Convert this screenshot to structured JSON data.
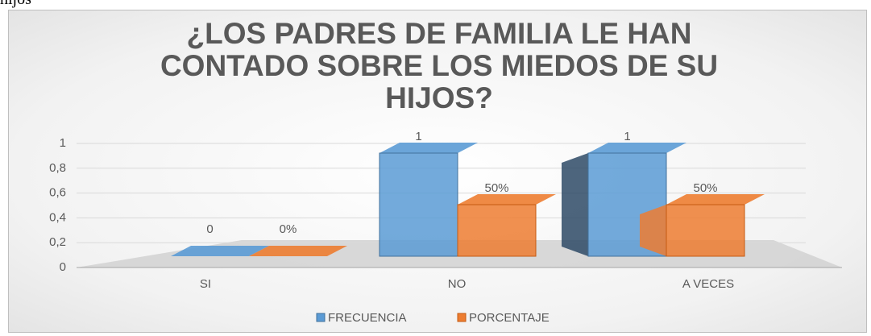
{
  "fragment": "hijos",
  "chart_data": {
    "type": "bar3d",
    "title": "¿LOS PADRES DE FAMILIA LE HAN CONTADO SOBRE LOS MIEDOS DE SU HIJOS?",
    "categories": [
      "SI",
      "NO",
      "A VECES"
    ],
    "series": [
      {
        "name": "FRECUENCIA",
        "color": "#5b9bd5",
        "values": [
          0,
          1,
          1
        ]
      },
      {
        "name": "PORCENTAJE",
        "color": "#ed7d31",
        "values": [
          0,
          0.5,
          0.5
        ],
        "value_labels": [
          "0%",
          "50%",
          "50%"
        ]
      }
    ],
    "ylim": [
      0,
      1
    ],
    "yticks": [
      0,
      {
        "value": 0.2,
        "label": "0,2"
      },
      {
        "value": 0.4,
        "label": "0,4"
      },
      {
        "value": 0.6,
        "label": "0,6"
      },
      {
        "value": 0.8,
        "label": "0,8"
      },
      1
    ],
    "grid": true,
    "legend": "bottom"
  }
}
